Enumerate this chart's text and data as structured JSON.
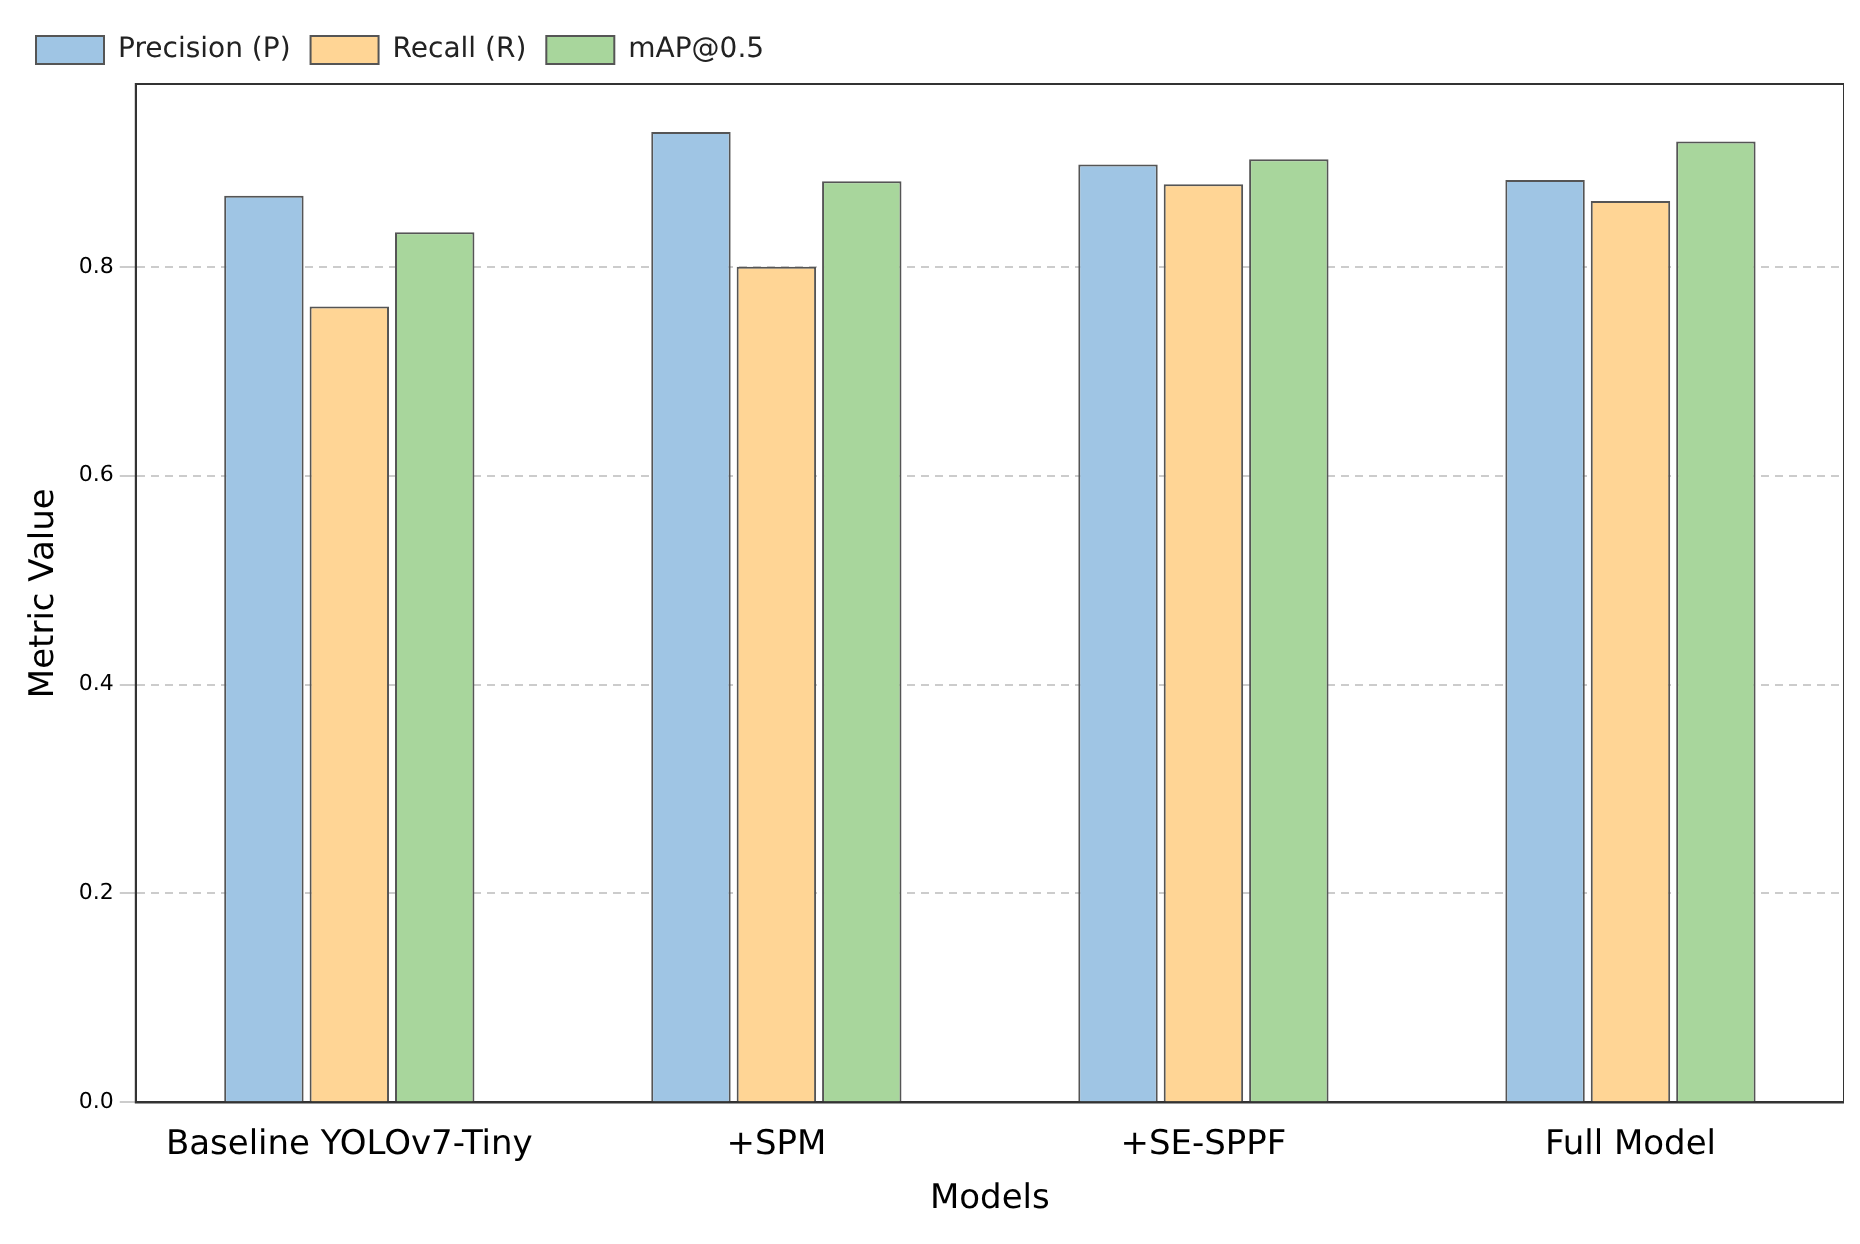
{
  "chart_data": {
    "type": "bar",
    "xlabel": "Models",
    "ylabel": "Metric Value",
    "categories": [
      "Baseline YOLOv7-Tiny",
      "+SPM",
      "+SE-SPPF",
      "Full Model"
    ],
    "series": [
      {
        "name": "Precision (P)",
        "color": "#9fc5e4",
        "values": [
          0.868,
          0.929,
          0.898,
          0.883
        ]
      },
      {
        "name": "Recall (R)",
        "color": "#ffd595",
        "values": [
          0.762,
          0.8,
          0.879,
          0.863
        ]
      },
      {
        "name": "mAP@0.5",
        "color": "#a8d69c",
        "values": [
          0.833,
          0.882,
          0.903,
          0.92
        ]
      }
    ],
    "ylim": [
      0,
      0.975
    ],
    "yticks": [
      {
        "value": 0,
        "label": "0.0"
      },
      0.2,
      0.4,
      0.6,
      0.8
    ],
    "grid": "y",
    "legend": "top"
  }
}
